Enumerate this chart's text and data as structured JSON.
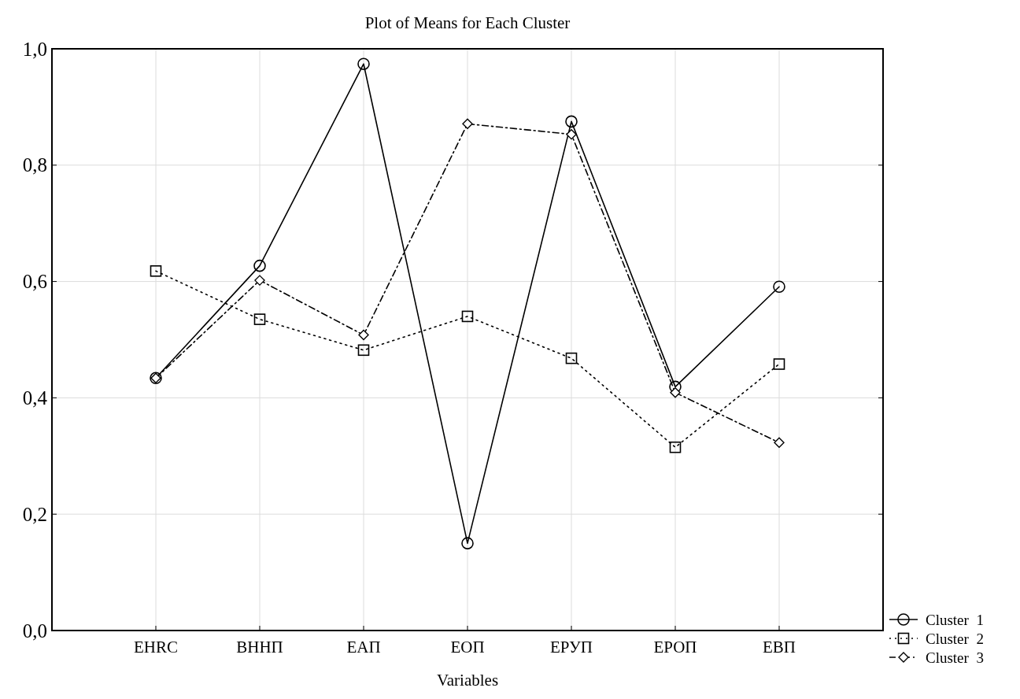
{
  "chart_data": {
    "type": "line",
    "title": "Plot of Means for Each Cluster",
    "xlabel": "Variables",
    "categories": [
      "EHRC",
      "ВННП",
      "ЕАП",
      "ЕОП",
      "ЕРУП",
      "ЕРОП",
      "ЕВП"
    ],
    "ylim": [
      0,
      1
    ],
    "yticks": [
      {
        "value": 0,
        "label": "0,0"
      },
      {
        "value": 0.2,
        "label": "0,2"
      },
      {
        "value": 0.4,
        "label": "0,4"
      },
      {
        "value": 0.6,
        "label": "0,6"
      },
      {
        "value": 0.8,
        "label": "0,8"
      },
      {
        "value": 1,
        "label": "1,0"
      }
    ],
    "grid": true,
    "legend": "bottom right",
    "series": [
      {
        "name": "Cluster  1",
        "color": "#000000",
        "marker": "circle",
        "line_style": "solid",
        "values": [
          0.434,
          0.627,
          0.974,
          0.15,
          0.875,
          0.419,
          0.591
        ]
      },
      {
        "name": "Cluster  2",
        "color": "#000000",
        "marker": "square",
        "line_style": "dotted",
        "values": [
          0.618,
          0.535,
          0.482,
          0.54,
          0.468,
          0.315,
          0.458
        ]
      },
      {
        "name": "Cluster  3",
        "color": "#000000",
        "marker": "diamond",
        "line_style": "dashed",
        "values": [
          0.434,
          0.602,
          0.508,
          0.871,
          0.853,
          0.409,
          0.323
        ]
      }
    ]
  }
}
